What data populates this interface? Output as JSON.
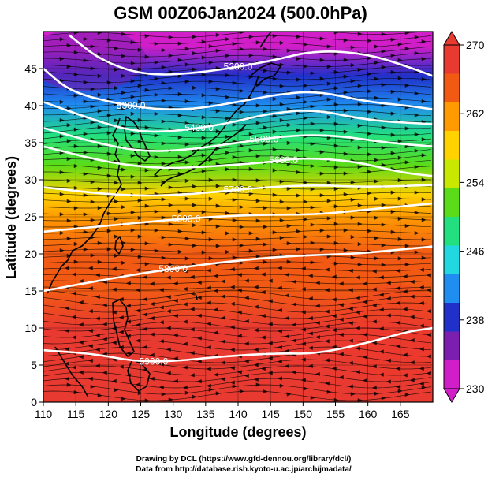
{
  "title": "GSM 00Z06Jan2024 (500.0hPa)",
  "axes": {
    "xlabel": "Longitude (degrees)",
    "ylabel": "Latitude  (degrees)",
    "x_ticks": [
      "110",
      "115",
      "120",
      "125",
      "130",
      "135",
      "140",
      "145",
      "150",
      "155",
      "160",
      "165"
    ],
    "y_ticks": [
      "0",
      "5",
      "10",
      "15",
      "20",
      "25",
      "30",
      "35",
      "40",
      "45"
    ],
    "xlim": [
      110,
      170
    ],
    "ylim": [
      0,
      50
    ]
  },
  "colorbar": {
    "ticks": [
      "230",
      "238",
      "246",
      "254",
      "262",
      "270"
    ],
    "range": [
      230,
      270
    ],
    "colors": [
      "#d21ec8",
      "#7a1fb0",
      "#2030c8",
      "#1f8ef0",
      "#22d8e0",
      "#22e080",
      "#5adc18",
      "#c8e800",
      "#ffd200",
      "#ff9a00",
      "#f25a14",
      "#e83a30"
    ]
  },
  "contours": {
    "color": "#ffffff",
    "labels": [
      "5200.0",
      "5300.0",
      "5400.0",
      "5500.0",
      "5600.0",
      "5700.0",
      "5800.0",
      "5900.0"
    ]
  },
  "chart_data": {
    "type": "heatmap",
    "variable_range": [
      230,
      270
    ],
    "temperature_by_latitude": [
      {
        "lat": 0,
        "value": 268
      },
      {
        "lat": 10,
        "value": 267
      },
      {
        "lat": 15,
        "value": 266
      },
      {
        "lat": 20,
        "value": 265
      },
      {
        "lat": 25,
        "value": 263
      },
      {
        "lat": 28,
        "value": 257
      },
      {
        "lat": 32,
        "value": 252
      },
      {
        "lat": 36,
        "value": 247
      },
      {
        "lat": 40,
        "value": 243
      },
      {
        "lat": 44,
        "value": 238
      },
      {
        "lat": 48,
        "value": 233
      }
    ],
    "height_contours": [
      {
        "value": 5200,
        "points": [
          [
            114,
            49.5
          ],
          [
            119,
            46
          ],
          [
            126,
            44
          ],
          [
            135,
            44.5
          ],
          [
            145,
            46
          ],
          [
            152,
            47.5
          ],
          [
            160,
            47
          ],
          [
            167,
            45
          ],
          [
            170,
            44
          ]
        ]
      },
      {
        "value": 5300,
        "points": [
          [
            110,
            45
          ],
          [
            114,
            42
          ],
          [
            120,
            40.5
          ],
          [
            127,
            39.5
          ],
          [
            133,
            39.5
          ],
          [
            140,
            40.5
          ],
          [
            146,
            41.5
          ],
          [
            152,
            42
          ],
          [
            160,
            40.5
          ],
          [
            166,
            40
          ],
          [
            170,
            39.5
          ]
        ]
      },
      {
        "value": 5400,
        "points": [
          [
            110,
            40.5
          ],
          [
            118,
            38
          ],
          [
            124,
            36.5
          ],
          [
            130,
            36.5
          ],
          [
            138,
            37.5
          ],
          [
            145,
            39
          ],
          [
            152,
            39.5
          ],
          [
            160,
            38
          ],
          [
            170,
            37.5
          ]
        ]
      },
      {
        "value": 5500,
        "points": [
          [
            110,
            37
          ],
          [
            118,
            35
          ],
          [
            125,
            33.8
          ],
          [
            132,
            34
          ],
          [
            140,
            35
          ],
          [
            148,
            36
          ],
          [
            155,
            36
          ],
          [
            163,
            35
          ],
          [
            170,
            34.5
          ]
        ]
      },
      {
        "value": 5600,
        "points": [
          [
            110,
            34.5
          ],
          [
            120,
            32.3
          ],
          [
            128,
            31.5
          ],
          [
            136,
            31.8
          ],
          [
            144,
            32.3
          ],
          [
            150,
            33
          ],
          [
            158,
            32.5
          ],
          [
            165,
            31
          ],
          [
            170,
            30.5
          ]
        ]
      },
      {
        "value": 5700,
        "points": [
          [
            110,
            29
          ],
          [
            120,
            28
          ],
          [
            128,
            27.8
          ],
          [
            136,
            28.3
          ],
          [
            144,
            29
          ],
          [
            152,
            29.3
          ],
          [
            160,
            29
          ],
          [
            170,
            29.3
          ]
        ]
      },
      {
        "value": 5800,
        "points": [
          [
            110,
            23
          ],
          [
            120,
            23.8
          ],
          [
            128,
            24.5
          ],
          [
            136,
            25
          ],
          [
            144,
            25.3
          ],
          [
            152,
            25.3
          ],
          [
            160,
            26
          ],
          [
            170,
            26.8
          ]
        ]
      },
      {
        "value": 5800,
        "points": [
          [
            110,
            15
          ],
          [
            118,
            16.3
          ],
          [
            126,
            17.5
          ],
          [
            134,
            18.5
          ],
          [
            142,
            19.3
          ],
          [
            150,
            19.8
          ],
          [
            158,
            20
          ],
          [
            164,
            20.5
          ],
          [
            170,
            21
          ]
        ]
      },
      {
        "value": 5900,
        "points": [
          [
            110,
            7
          ],
          [
            118,
            6.5
          ],
          [
            124,
            5.5
          ],
          [
            130,
            5.5
          ],
          [
            138,
            6.2
          ],
          [
            146,
            6.6
          ],
          [
            152,
            6.5
          ],
          [
            160,
            8
          ],
          [
            166,
            9.5
          ],
          [
            170,
            10
          ]
        ]
      }
    ]
  },
  "credits": {
    "line1": "Drawing by DCL (https://www.gfd-dennou.org/library/dcl/)",
    "line2": "Data from http://database.rish.kyoto-u.ac.jp/arch/jmadata/"
  }
}
